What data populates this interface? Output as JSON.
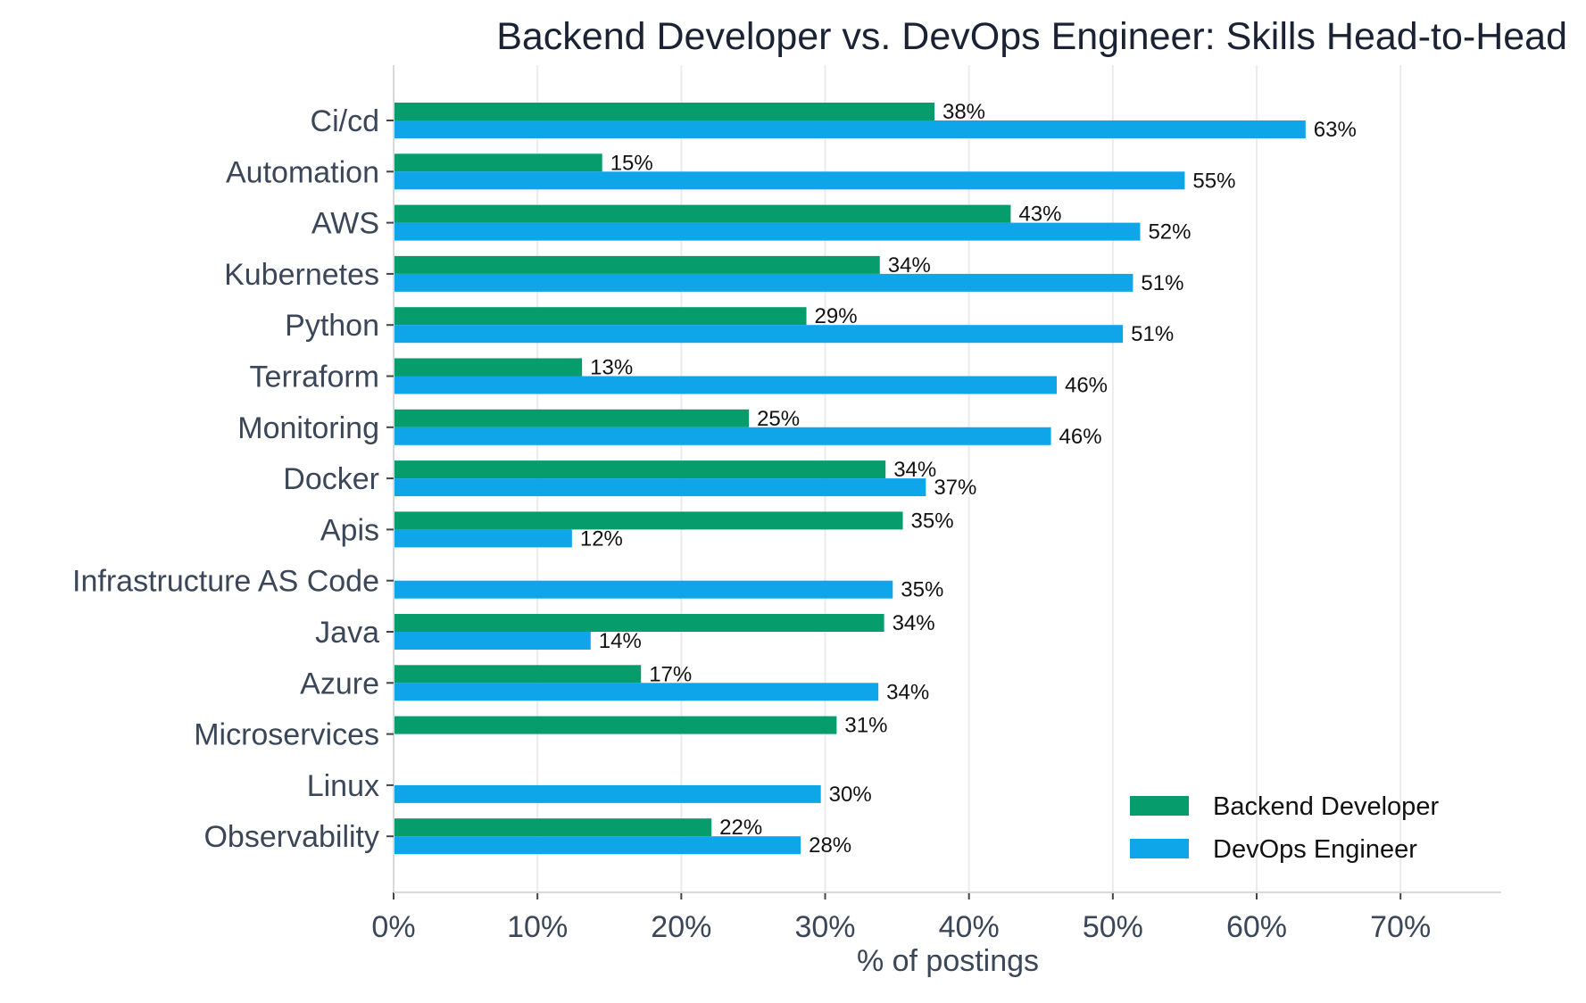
{
  "chart_data": {
    "type": "bar",
    "orientation": "horizontal",
    "title": "Backend Developer vs. DevOps Engineer: Skills Head-to-Head",
    "xlabel": "% of postings",
    "ylabel": "",
    "xlim": [
      0,
      77
    ],
    "x_ticks": [
      0,
      10,
      20,
      30,
      40,
      50,
      60,
      70
    ],
    "x_tick_labels": [
      "0%",
      "10%",
      "20%",
      "30%",
      "40%",
      "50%",
      "60%",
      "70%"
    ],
    "grid": "vertical",
    "legend_position": "bottom-right",
    "categories": [
      "Ci/cd",
      "Automation",
      "AWS",
      "Kubernetes",
      "Python",
      "Terraform",
      "Monitoring",
      "Docker",
      "Apis",
      "Infrastructure AS Code",
      "Java",
      "Azure",
      "Microservices",
      "Linux",
      "Observability"
    ],
    "series": [
      {
        "name": "Backend Developer",
        "color": "#069c6b",
        "values": [
          37.6,
          14.5,
          42.9,
          33.8,
          28.7,
          13.1,
          24.7,
          34.2,
          35.4,
          null,
          34.1,
          17.2,
          30.8,
          null,
          22.1
        ],
        "labels": [
          "38%",
          "15%",
          "43%",
          "34%",
          "29%",
          "13%",
          "25%",
          "34%",
          "35%",
          "",
          "34%",
          "17%",
          "31%",
          "",
          "22%"
        ]
      },
      {
        "name": "DevOps Engineer",
        "color": "#0ea5e9",
        "values": [
          63.4,
          55.0,
          51.9,
          51.4,
          50.7,
          46.1,
          45.7,
          37.0,
          12.4,
          34.7,
          13.7,
          33.7,
          null,
          29.7,
          28.3
        ],
        "labels": [
          "63%",
          "55%",
          "52%",
          "51%",
          "51%",
          "46%",
          "46%",
          "37%",
          "12%",
          "35%",
          "14%",
          "34%",
          "",
          "30%",
          "28%"
        ]
      }
    ]
  }
}
